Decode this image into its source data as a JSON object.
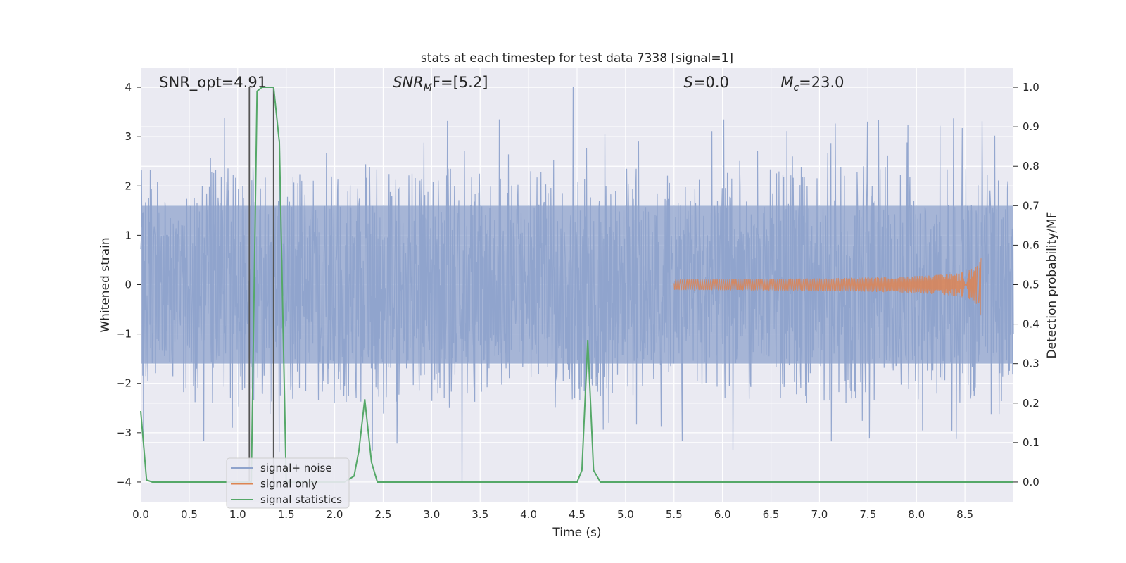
{
  "chart_data": {
    "type": "line",
    "title": "stats at each timestep for test data 7338 [signal=1]",
    "xlabel": "Time (s)",
    "ylabel": "Whitened strain",
    "ylabel_right": "Detection probability/MF",
    "xlim": [
      0.0,
      9.0
    ],
    "ylim": [
      -4.4,
      4.4
    ],
    "ylim_right": [
      -0.05,
      1.05
    ],
    "x_ticks": [
      0.0,
      0.5,
      1.0,
      1.5,
      2.0,
      2.5,
      3.0,
      3.5,
      4.0,
      4.5,
      5.0,
      5.5,
      6.0,
      6.5,
      7.0,
      7.5,
      8.0,
      8.5
    ],
    "x_tick_labels": [
      "0.0",
      "0.5",
      "1.0",
      "1.5",
      "2.0",
      "2.5",
      "3.0",
      "3.5",
      "4.0",
      "4.5",
      "5.0",
      "5.5",
      "6.0",
      "6.5",
      "7.0",
      "7.5",
      "8.0",
      "8.5"
    ],
    "y_ticks": [
      -4,
      -3,
      -2,
      -1,
      0,
      1,
      2,
      3,
      4
    ],
    "y_tick_labels": [
      "−4",
      "−3",
      "−2",
      "−1",
      "0",
      "1",
      "2",
      "3",
      "4"
    ],
    "y_right_ticks": [
      0.0,
      0.1,
      0.2,
      0.3,
      0.4,
      0.5,
      0.6,
      0.7,
      0.8,
      0.9,
      1.0
    ],
    "y_right_tick_labels": [
      "0.0",
      "0.1",
      "0.2",
      "0.3",
      "0.4",
      "0.5",
      "0.6",
      "0.7",
      "0.8",
      "0.9",
      "1.0"
    ],
    "grid": true,
    "legend_position": "lower-left",
    "annotations": [
      {
        "text": "SNR_opt=4.91",
        "x": 0.19,
        "y": 4.1,
        "italic": false
      },
      {
        "text": "SNR",
        "sub": "M",
        "suffix": "F=[5.2]",
        "x": 2.6,
        "y": 4.1,
        "italic": true
      },
      {
        "text": "S",
        "suffix": "=0.0",
        "x": 5.6,
        "y": 4.1,
        "italic": true
      },
      {
        "text": "M",
        "sub": "c",
        "suffix": "=23.0",
        "x": 6.6,
        "y": 4.1,
        "italic": true
      }
    ],
    "vertical_lines": [
      1.12,
      1.37
    ],
    "series": [
      {
        "name": "signal+ noise",
        "color": "#8fa3cc",
        "kind": "noise",
        "x_range": [
          0.0,
          9.0
        ],
        "core_amplitude": 1.6,
        "typical_peak": 2.4,
        "max_peak": 4.0,
        "min_value": -4.0
      },
      {
        "name": "signal only",
        "color": "#dd8452",
        "kind": "chirp",
        "x_range": [
          5.5,
          8.67
        ],
        "final_amplitude": 0.9,
        "end_time": 8.67
      },
      {
        "name": "signal statistics",
        "color": "#55a868",
        "kind": "line",
        "axis": "right",
        "x": [
          0.0,
          0.06,
          0.12,
          1.1,
          1.14,
          1.2,
          1.25,
          1.37,
          1.43,
          1.5,
          2.0,
          2.1,
          2.2,
          2.25,
          2.31,
          2.38,
          2.44,
          2.5,
          4.5,
          4.55,
          4.61,
          4.67,
          4.74,
          4.8,
          9.0
        ],
        "y": [
          0.18,
          0.005,
          0.0,
          0.0,
          0.0,
          0.99,
          1.0,
          1.0,
          0.86,
          0.0,
          0.0,
          0.0,
          0.015,
          0.08,
          0.21,
          0.05,
          0.0,
          0.0,
          0.0,
          0.03,
          0.36,
          0.03,
          0.0,
          0.0,
          0.0
        ]
      }
    ]
  }
}
